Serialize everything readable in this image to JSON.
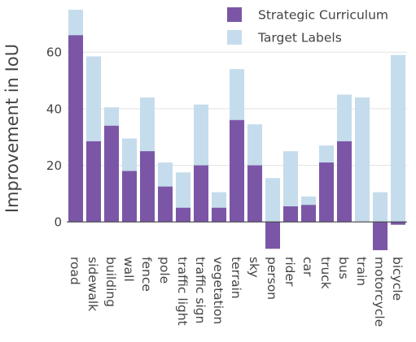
{
  "chart_data": {
    "type": "bar",
    "barmode": "overlay",
    "categories": [
      "road",
      "sidewalk",
      "building",
      "wall",
      "fence",
      "pole",
      "traffic light",
      "traffic sign",
      "vegetation",
      "terrain",
      "sky",
      "person",
      "rider",
      "car",
      "truck",
      "bus",
      "train",
      "motorcycle",
      "bicycle"
    ],
    "series": [
      {
        "name": "Target Labels",
        "color": "#c5dcec",
        "values": [
          75.0,
          58.5,
          40.5,
          29.5,
          44.0,
          21.0,
          17.5,
          41.5,
          10.5,
          54.0,
          34.5,
          15.5,
          25.0,
          9.0,
          27.0,
          45.0,
          44.0,
          10.5,
          59.0
        ]
      },
      {
        "name": "Strategic Curriculum",
        "color": "#7b56a6",
        "values": [
          66.0,
          28.5,
          34.0,
          18.0,
          25.0,
          12.5,
          5.0,
          20.0,
          5.0,
          36.0,
          20.0,
          -9.5,
          5.5,
          6.0,
          21.0,
          28.5,
          0.0,
          -10.0,
          -1.0
        ]
      }
    ],
    "ylabel": "Improvement in IoU",
    "xlabel": "",
    "ylim": [
      -10,
      75
    ],
    "yticks": [
      0,
      20,
      40,
      60
    ],
    "grid": true,
    "legend_position": "top-right",
    "tick_color": "#444444",
    "grid_color": "#e4e4e4",
    "zero_line_color": "#444444"
  }
}
